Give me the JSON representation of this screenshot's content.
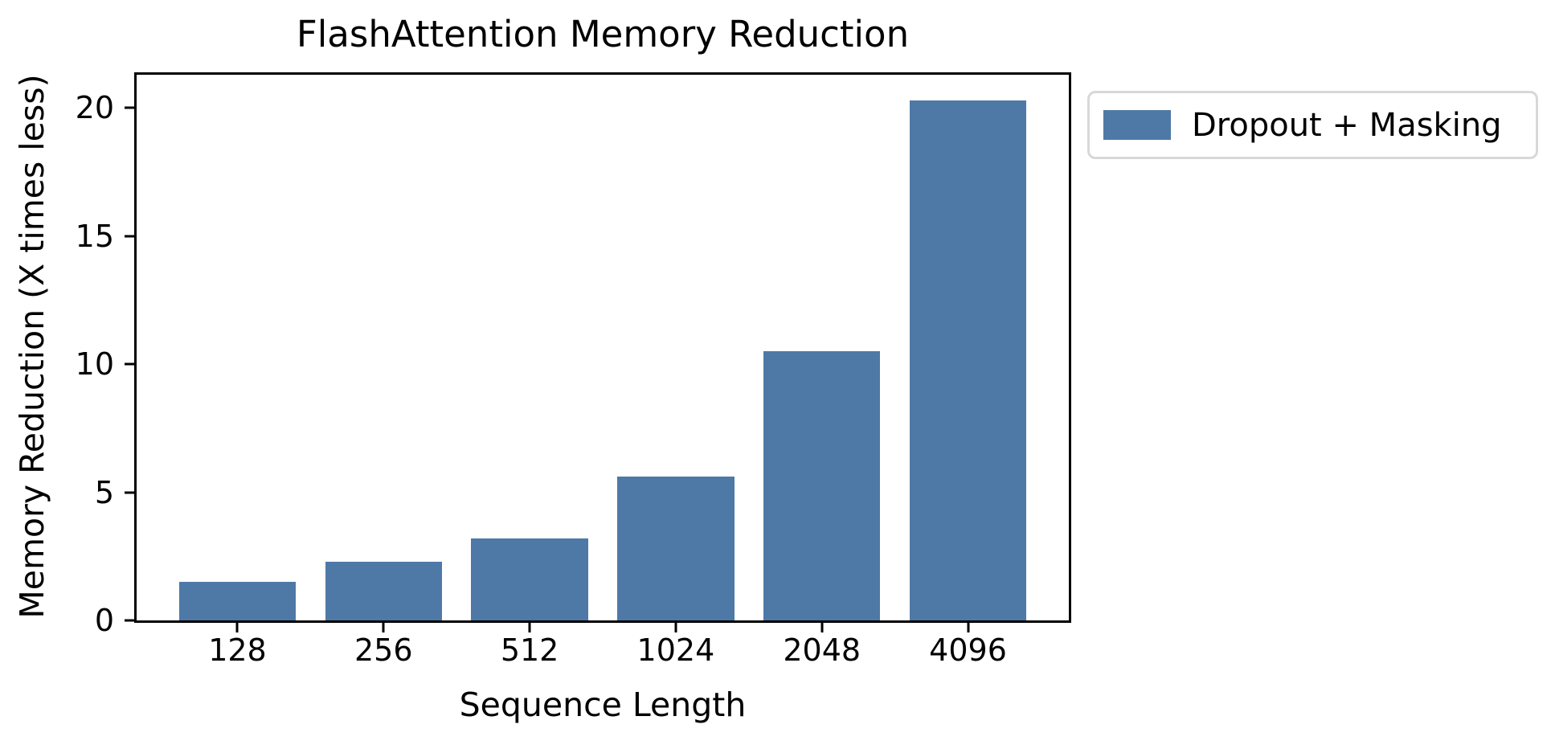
{
  "chart_data": {
    "type": "bar",
    "title": "FlashAttention Memory Reduction",
    "xlabel": "Sequence Length",
    "ylabel": "Memory Reduction (X times less)",
    "categories": [
      "128",
      "256",
      "512",
      "1024",
      "2048",
      "4096"
    ],
    "series": [
      {
        "name": "Dropout + Masking",
        "color": "#4E79A7",
        "values": [
          1.5,
          2.3,
          3.2,
          5.6,
          10.5,
          20.3
        ]
      }
    ],
    "yticks": [
      0,
      5,
      10,
      15,
      20
    ],
    "ylim": [
      0,
      21.3
    ],
    "xlim": [
      -0.69,
      5.69
    ],
    "bar_width": 0.8,
    "grid": false,
    "legend_position": "outside upper right",
    "legend_border_color": "#d8d8d8",
    "spine_color": "#000000"
  }
}
